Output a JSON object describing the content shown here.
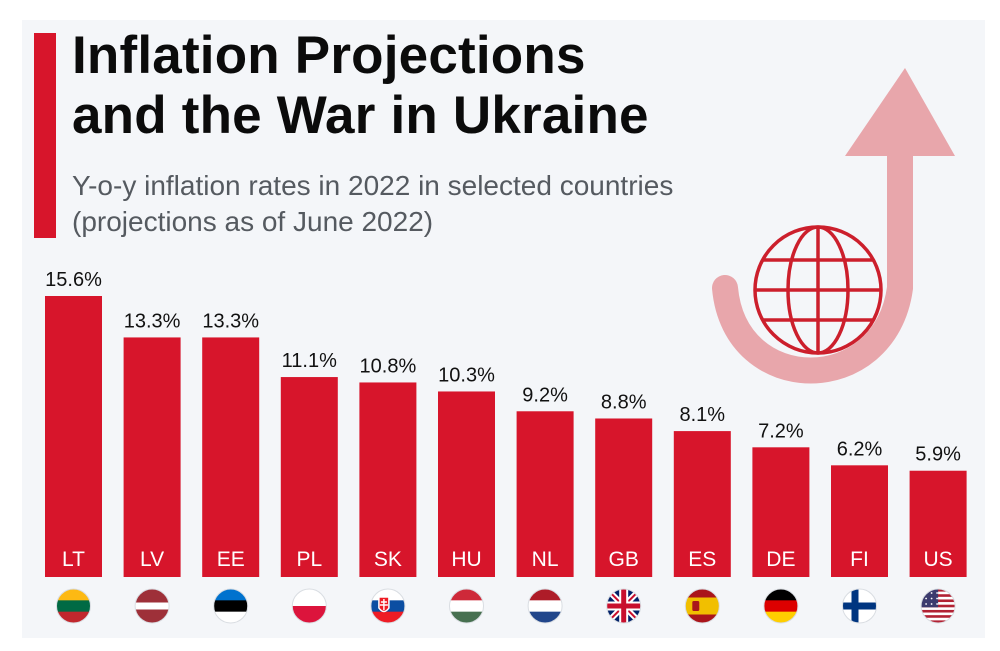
{
  "header": {
    "title_line1": "Inflation Projections",
    "title_line2": "and the War in Ukraine",
    "subtitle_line1": "Y-o-y inflation rates in 2022 in selected countries",
    "subtitle_line2": "(projections as of June 2022)"
  },
  "decoration": {
    "icon": "globe-with-rising-arrow-icon",
    "arrow_color": "#e8a6ab",
    "globe_color": "#cc1f2c"
  },
  "colors": {
    "bar": "#d7152b",
    "background": "#f4f6f9",
    "accent": "#d7152b"
  },
  "chart_data": {
    "type": "bar",
    "title": "Inflation Projections and the War in Ukraine",
    "subtitle": "Y-o-y inflation rates in 2022 in selected countries (projections as of June 2022)",
    "categories": [
      "LT",
      "LV",
      "EE",
      "PL",
      "SK",
      "HU",
      "NL",
      "GB",
      "ES",
      "DE",
      "FI",
      "US"
    ],
    "values": [
      15.6,
      13.3,
      13.3,
      11.1,
      10.8,
      10.3,
      9.2,
      8.8,
      8.1,
      7.2,
      6.2,
      5.9
    ],
    "value_labels": [
      "15.6%",
      "13.3%",
      "13.3%",
      "11.1%",
      "10.8%",
      "10.3%",
      "9.2%",
      "8.8%",
      "8.1%",
      "7.2%",
      "6.2%",
      "5.9%"
    ],
    "flag_icons": [
      "lithuania-flag-icon",
      "latvia-flag-icon",
      "estonia-flag-icon",
      "poland-flag-icon",
      "slovakia-flag-icon",
      "hungary-flag-icon",
      "netherlands-flag-icon",
      "uk-flag-icon",
      "spain-flag-icon",
      "germany-flag-icon",
      "finland-flag-icon",
      "usa-flag-icon"
    ],
    "ylim": [
      0,
      15.6
    ],
    "grid": false,
    "legend": "none"
  }
}
